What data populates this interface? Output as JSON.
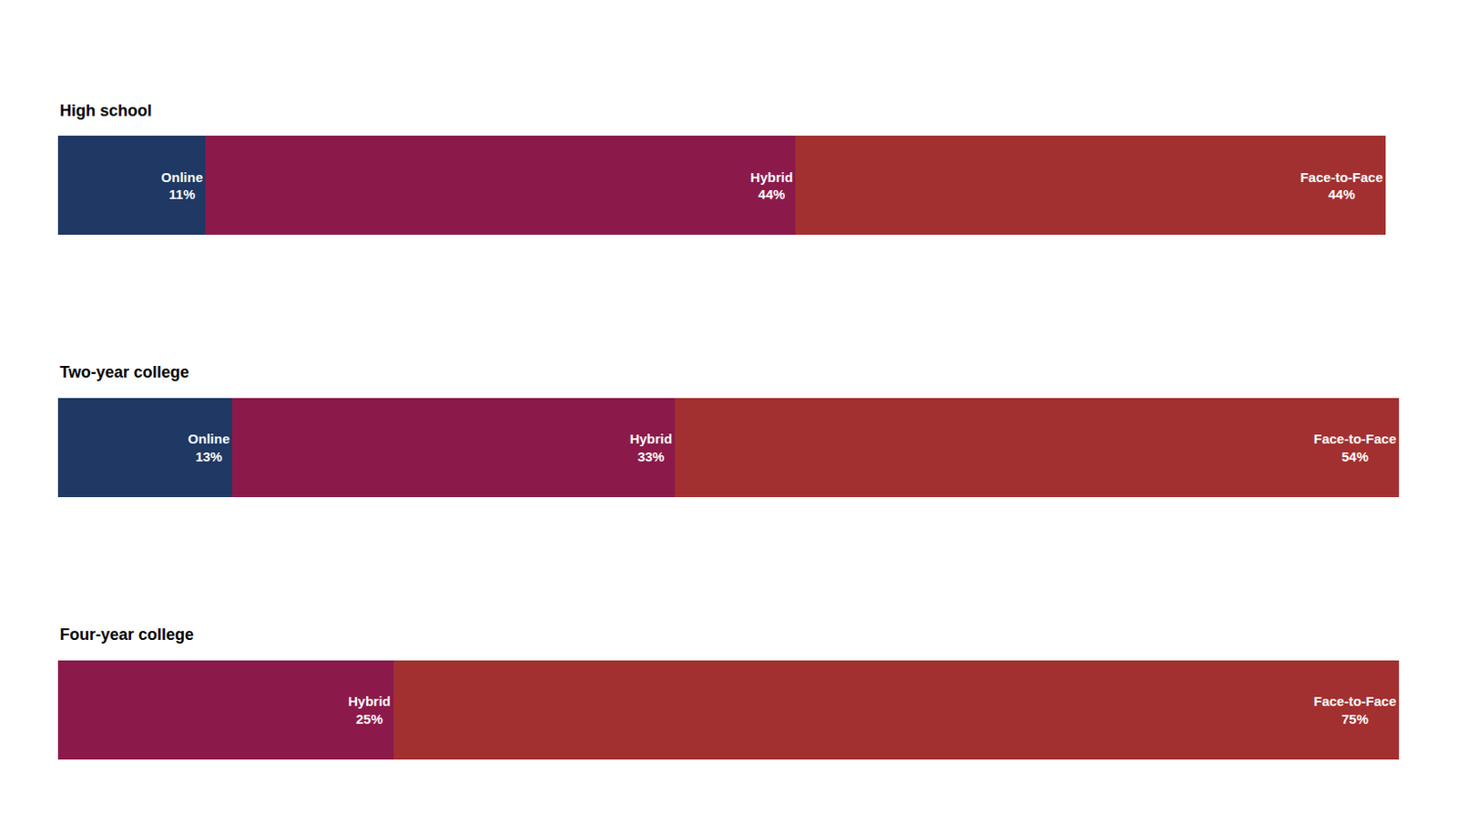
{
  "chart_data": [
    {
      "type": "bar",
      "orientation": "horizontal",
      "stacked": true,
      "title": "High school",
      "categories": [
        null
      ],
      "series": [
        {
          "name": "Online",
          "color": "#1f3864",
          "values": [
            11
          ],
          "value_labels": [
            "11%"
          ]
        },
        {
          "name": "Hybrid",
          "color": "#8b1a4a",
          "values": [
            44
          ],
          "value_labels": [
            "44%"
          ]
        },
        {
          "name": "Face-to-Face",
          "color": "#a33030",
          "values": [
            44
          ],
          "value_labels": [
            "44%"
          ]
        }
      ],
      "xlim": [
        0,
        100
      ],
      "grid": false,
      "data_labels": true,
      "tick_labels": false
    },
    {
      "type": "bar",
      "orientation": "horizontal",
      "stacked": true,
      "title": "Two-year college",
      "categories": [
        null
      ],
      "series": [
        {
          "name": "Online",
          "color": "#1f3864",
          "values": [
            13
          ],
          "value_labels": [
            "13%"
          ]
        },
        {
          "name": "Hybrid",
          "color": "#8b1a4a",
          "values": [
            33
          ],
          "value_labels": [
            "33%"
          ]
        },
        {
          "name": "Face-to-Face",
          "color": "#a33030",
          "values": [
            54
          ],
          "value_labels": [
            "54%"
          ]
        }
      ],
      "xlim": [
        0,
        100
      ],
      "grid": false,
      "data_labels": true,
      "tick_labels": false
    },
    {
      "type": "bar",
      "orientation": "horizontal",
      "stacked": true,
      "title": "Four-year college",
      "categories": [
        null
      ],
      "series": [
        {
          "name": "Hybrid",
          "color": "#8b1a4a",
          "values": [
            25
          ],
          "value_labels": [
            "25%"
          ]
        },
        {
          "name": "Face-to-Face",
          "color": "#a33030",
          "values": [
            75
          ],
          "value_labels": [
            "75%"
          ]
        }
      ],
      "xlim": [
        0,
        100
      ],
      "grid": false,
      "data_labels": true,
      "tick_labels": false
    }
  ]
}
